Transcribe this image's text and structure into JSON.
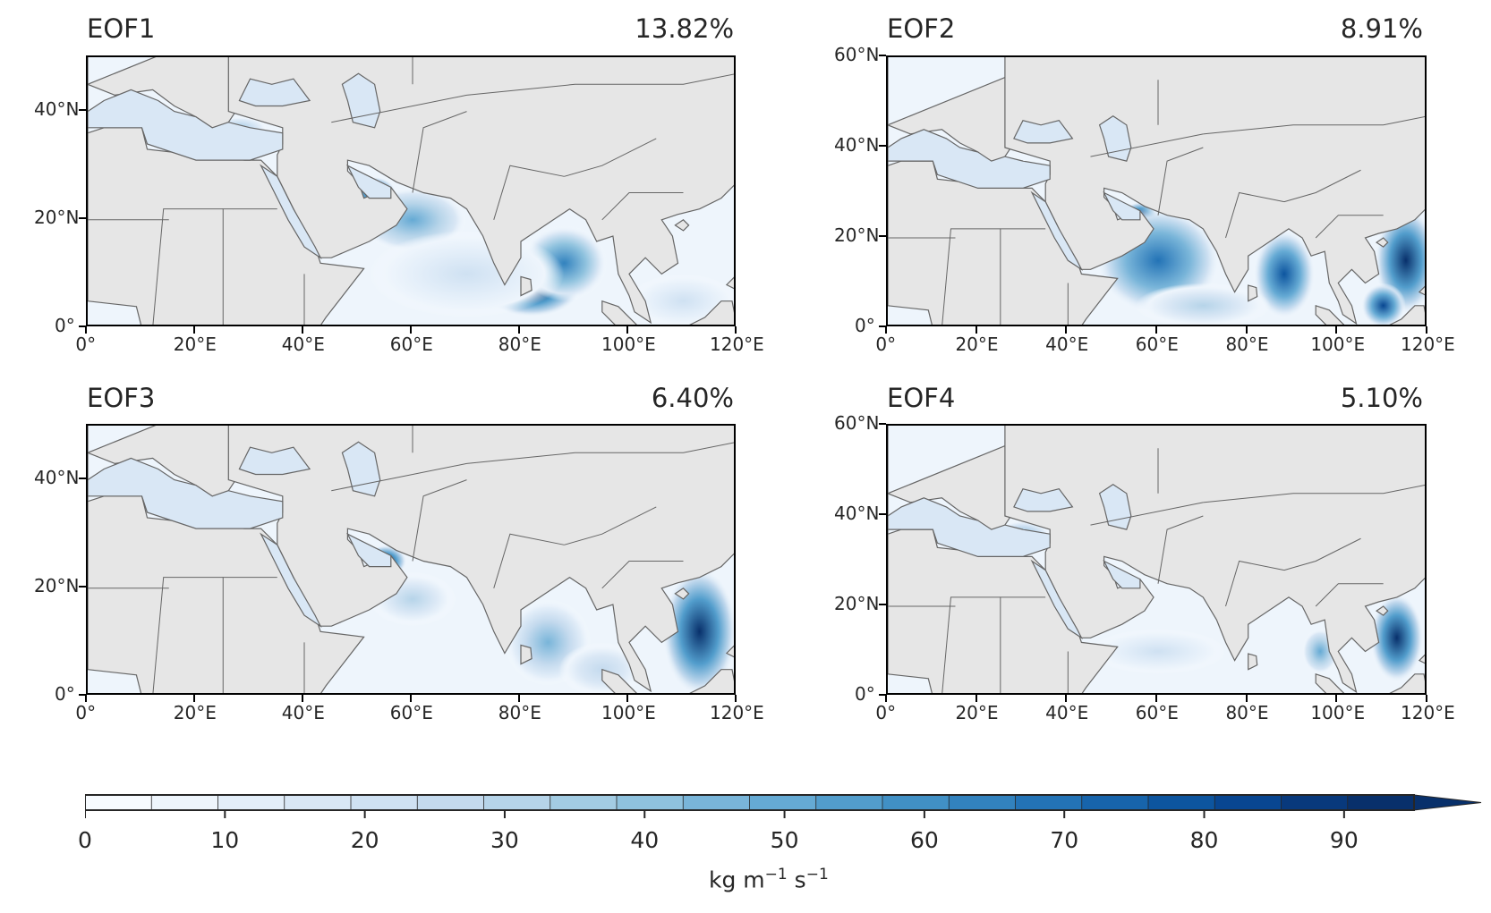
{
  "figure": {
    "panels": [
      {
        "id": "eof1",
        "title": "EOF1",
        "variance": "13.82%",
        "lat_ticks": [
          "40°N",
          "20°N",
          "0°"
        ],
        "lon_ticks": [
          "0°",
          "20°E",
          "40°E",
          "60°E",
          "80°E",
          "100°E",
          "120°E"
        ]
      },
      {
        "id": "eof2",
        "title": "EOF2",
        "variance": "8.91%",
        "lat_ticks": [
          "60°N",
          "40°N",
          "20°N",
          "0°"
        ],
        "lon_ticks": [
          "0°",
          "20°E",
          "40°E",
          "60°E",
          "80°E",
          "100°E",
          "120°E"
        ]
      },
      {
        "id": "eof3",
        "title": "EOF3",
        "variance": "6.40%",
        "lat_ticks": [
          "40°N",
          "20°N",
          "0°"
        ],
        "lon_ticks": [
          "0°",
          "20°E",
          "40°E",
          "60°E",
          "80°E",
          "100°E",
          "120°E"
        ]
      },
      {
        "id": "eof4",
        "title": "EOF4",
        "variance": "5.10%",
        "lat_ticks": [
          "60°N",
          "40°N",
          "20°N",
          "0°"
        ],
        "lon_ticks": [
          "0°",
          "20°E",
          "40°E",
          "60°E",
          "80°E",
          "100°E",
          "120°E"
        ]
      }
    ],
    "colorbar": {
      "label": "kg m",
      "label_sup1": "−1",
      "label_mid": " s",
      "label_sup2": "−1",
      "ticks": [
        "0",
        "10",
        "20",
        "30",
        "40",
        "50",
        "60",
        "70",
        "80",
        "90"
      ],
      "levels": [
        0,
        5,
        10,
        15,
        20,
        25,
        30,
        35,
        40,
        45,
        50,
        55,
        60,
        65,
        70,
        75,
        80,
        85,
        90,
        95
      ],
      "extend": "max",
      "colormap": "Blues",
      "colors": [
        "#f7fbff",
        "#eef5fc",
        "#e3eef9",
        "#d9e7f5",
        "#cfe1f2",
        "#c4daee",
        "#b6d4e9",
        "#a3cce3",
        "#8fc2de",
        "#79b5d9",
        "#65aad4",
        "#529dcc",
        "#4190c5",
        "#3282be",
        "#2373b6",
        "#1764ab",
        "#0d559f",
        "#084691",
        "#08397c",
        "#08306b"
      ]
    },
    "land_color": "#e6e6e6",
    "coastline_color": "#666666"
  }
}
